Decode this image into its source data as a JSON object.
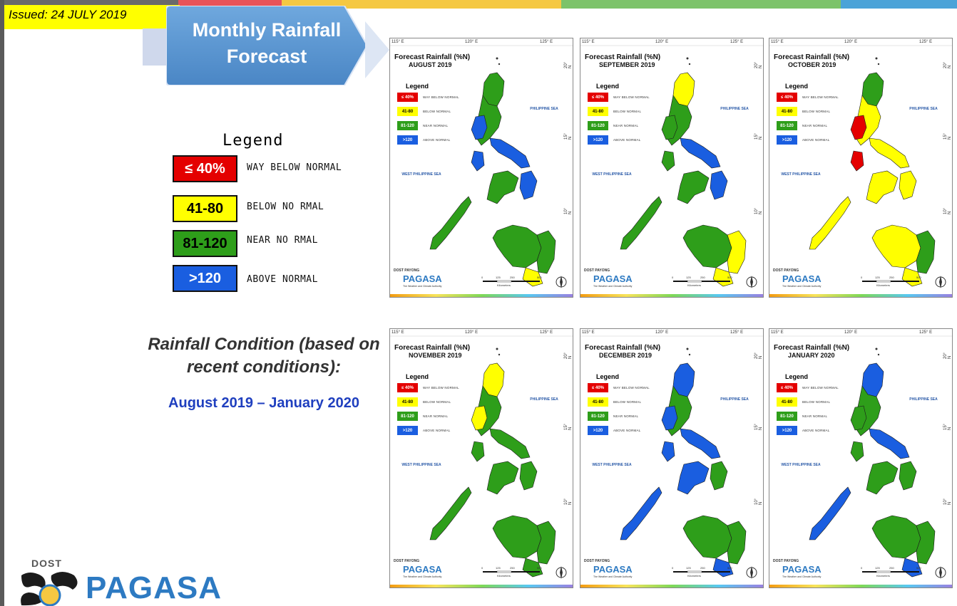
{
  "header": {
    "issued": "Issued: 24 JULY 2019",
    "title_line1": "Monthly Rainfall",
    "title_line2": "Forecast"
  },
  "colors": {
    "way_below": "#e40000",
    "below": "#ffff00",
    "near": "#2e9e1a",
    "above": "#1a5ee0",
    "callout": "#5b9bd5"
  },
  "legend": {
    "title": "Legend",
    "items": [
      {
        "range": "≤ 40%",
        "label": "WAY BELOW NORMAL",
        "color": "#e40000",
        "text_color": "#ffffff"
      },
      {
        "range": "41-80",
        "label": "BELOW NO RMAL",
        "color": "#ffff00",
        "text_color": "#000000"
      },
      {
        "range": "81-120",
        "label": "NEAR NO RMAL",
        "color": "#2e9e1a",
        "text_color": "#000000"
      },
      {
        "range": ">120",
        "label": "ABOVE NORMAL",
        "color": "#1a5ee0",
        "text_color": "#ffffff"
      }
    ]
  },
  "condition": {
    "title": "Rainfall Condition (based on recent conditions):",
    "period": "August 2019 – January 2020"
  },
  "logo": {
    "dost": "DOST",
    "name": "PAGASA"
  },
  "map_common": {
    "title": "Forecast Rainfall (%N)",
    "legend_title": "Legend",
    "legend_items": [
      {
        "range": "≤ 40%",
        "label": "WAY BELOW NORMAL"
      },
      {
        "range": "41-80",
        "label": "BELOW NORMAL"
      },
      {
        "range": "81-120",
        "label": "NEAR NORMAL"
      },
      {
        "range": ">120",
        "label": "ABOVE NORMAL"
      }
    ],
    "lon_labels": [
      "115° E",
      "120° E",
      "125° E"
    ],
    "lat_labels": [
      "20° N",
      "15° N",
      "10° N"
    ],
    "sea_east": "PHILIPPINE SEA",
    "sea_west": "WEST PHILIPPINE SEA",
    "km": "Kilometers",
    "scale": [
      "0",
      "125",
      "250",
      "500"
    ],
    "logo_small": "DOST PAYONG",
    "logo": "PAGASA",
    "logo_sub": "The Weather and Climate Authority"
  },
  "maps": [
    {
      "month": "AUGUST 2019",
      "regions": {
        "luzon": "near",
        "nluzon": "near",
        "cluzon": "above",
        "bicol": "above",
        "visayas": "near",
        "ebvis": "above",
        "mindanao": "near",
        "emind": "near",
        "smind": "below",
        "palawan": "near",
        "mindoro": "above"
      }
    },
    {
      "month": "SEPTEMBER 2019",
      "regions": {
        "luzon": "near",
        "nluzon": "below",
        "cluzon": "near",
        "bicol": "above",
        "visayas": "near",
        "ebvis": "above",
        "mindanao": "near",
        "emind": "below",
        "smind": "below",
        "palawan": "near",
        "mindoro": "near"
      }
    },
    {
      "month": "OCTOBER 2019",
      "regions": {
        "luzon": "below",
        "nluzon": "near",
        "cluzon": "way_below",
        "bicol": "below",
        "visayas": "below",
        "ebvis": "below",
        "mindanao": "below",
        "emind": "near",
        "smind": "below",
        "palawan": "below",
        "mindoro": "way_below"
      }
    },
    {
      "month": "NOVEMBER 2019",
      "regions": {
        "luzon": "near",
        "nluzon": "below",
        "cluzon": "below",
        "bicol": "near",
        "visayas": "near",
        "ebvis": "near",
        "mindanao": "near",
        "emind": "near",
        "smind": "near",
        "palawan": "near",
        "mindoro": "near"
      }
    },
    {
      "month": "DECEMBER 2019",
      "regions": {
        "luzon": "near",
        "nluzon": "above",
        "cluzon": "above",
        "bicol": "above",
        "visayas": "above",
        "ebvis": "near",
        "mindanao": "near",
        "emind": "near",
        "smind": "above",
        "palawan": "above",
        "mindoro": "above"
      }
    },
    {
      "month": "JANUARY 2020",
      "regions": {
        "luzon": "near",
        "nluzon": "above",
        "cluzon": "near",
        "bicol": "above",
        "visayas": "near",
        "ebvis": "near",
        "mindanao": "near",
        "emind": "near",
        "smind": "above",
        "palawan": "above",
        "mindoro": "near"
      }
    }
  ]
}
